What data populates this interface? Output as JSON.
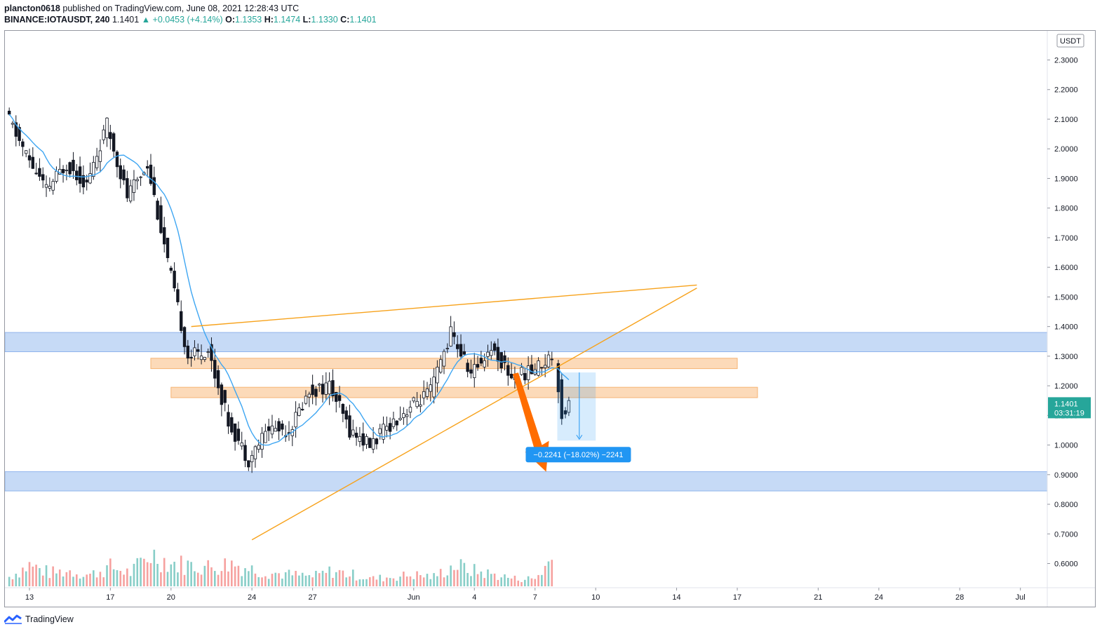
{
  "header": {
    "publisher": "plancton0618",
    "published_text": "published on TradingView.com, June 08, 2021 12:28:43 UTC",
    "symbol": "BINANCE:IOTAUSDT, 240",
    "last": "1.1401",
    "change": "+0.0453 (+4.14%)",
    "o_label": "O:",
    "o_value": "1.1353",
    "h_label": "H:",
    "h_value": "1.1474",
    "l_label": "L:",
    "l_value": "1.1330",
    "c_label": "C:",
    "c_value": "1.1401"
  },
  "footer": {
    "brand": "TradingView"
  },
  "colors": {
    "up": "#26a69a",
    "down": "#ef5350",
    "candle_up_fill": "#ffffff",
    "candle_body": "#131722",
    "ma": "#3ea6f2",
    "trendline": "#f7a21b",
    "zone_blue": "#bcd3f5",
    "zone_orange": "#fbd3ad",
    "arrow": "#ff6d00",
    "measure": "#2196f3",
    "price_label": "#26a69a"
  },
  "chart_data": {
    "type": "candlestick",
    "symbol": "BINANCE:IOTAUSDT",
    "timeframe": "240",
    "price_unit": "USDT",
    "y_axis": {
      "ticks": [
        "2.3000",
        "2.2000",
        "2.1000",
        "2.0000",
        "1.9000",
        "1.8000",
        "1.7000",
        "1.6000",
        "1.5000",
        "1.4000",
        "1.3000",
        "1.2000",
        "1.1000",
        "1.0000",
        "0.9000",
        "0.8000",
        "0.7000",
        "0.6000"
      ],
      "range": [
        0.53,
        2.33
      ]
    },
    "x_axis": {
      "ticks": [
        "13",
        "17",
        "20",
        "24",
        "27",
        "Jun",
        "4",
        "7",
        "10",
        "14",
        "17",
        "21",
        "24",
        "28",
        "Jul"
      ],
      "tick_dates": [
        "2021-05-13",
        "2021-05-17",
        "2021-05-20",
        "2021-05-24",
        "2021-05-27",
        "2021-06-01",
        "2021-06-04",
        "2021-06-07",
        "2021-06-10",
        "2021-06-14",
        "2021-06-17",
        "2021-06-21",
        "2021-06-24",
        "2021-06-28",
        "2021-07-01"
      ]
    },
    "current_price": "1.1401",
    "countdown": "03:31:19",
    "measurement_label": "−0.2241 (−18.02%) −2241",
    "price_path": [
      [
        "2021-05-12",
        2.12
      ],
      [
        "2021-05-13",
        1.98
      ],
      [
        "2021-05-14",
        1.86
      ],
      [
        "2021-05-15",
        1.95
      ],
      [
        "2021-05-16",
        1.88
      ],
      [
        "2021-05-17",
        2.08
      ],
      [
        "2021-05-18",
        1.84
      ],
      [
        "2021-05-19",
        1.95
      ],
      [
        "2021-05-20",
        1.62
      ],
      [
        "2021-05-21",
        1.3
      ],
      [
        "2021-05-22",
        1.32
      ],
      [
        "2021-05-23",
        1.08
      ],
      [
        "2021-05-24",
        0.95
      ],
      [
        "2021-05-25",
        1.06
      ],
      [
        "2021-05-26",
        1.05
      ],
      [
        "2021-05-27",
        1.18
      ],
      [
        "2021-05-28",
        1.2
      ],
      [
        "2021-05-29",
        1.05
      ],
      [
        "2021-05-30",
        1.0
      ],
      [
        "2021-05-31",
        1.07
      ],
      [
        "2021-06-01",
        1.13
      ],
      [
        "2021-06-02",
        1.18
      ],
      [
        "2021-06-03",
        1.38
      ],
      [
        "2021-06-04",
        1.24
      ],
      [
        "2021-06-05",
        1.33
      ],
      [
        "2021-06-06",
        1.23
      ],
      [
        "2021-06-07",
        1.25
      ],
      [
        "2021-06-08",
        1.3
      ],
      [
        "2021-06-08",
        1.1
      ],
      [
        "2021-06-08",
        1.14
      ]
    ],
    "volume_path": [
      [
        "2021-05-12",
        0.25
      ],
      [
        "2021-05-13",
        0.55
      ],
      [
        "2021-05-14",
        0.35
      ],
      [
        "2021-05-15",
        0.4
      ],
      [
        "2021-05-16",
        0.3
      ],
      [
        "2021-05-17",
        0.5
      ],
      [
        "2021-05-18",
        0.35
      ],
      [
        "2021-05-19",
        0.85
      ],
      [
        "2021-05-20",
        0.6
      ],
      [
        "2021-05-21",
        0.55
      ],
      [
        "2021-05-22",
        0.5
      ],
      [
        "2021-05-23",
        0.6
      ],
      [
        "2021-05-24",
        0.45
      ],
      [
        "2021-05-25",
        0.35
      ],
      [
        "2021-05-26",
        0.3
      ],
      [
        "2021-05-27",
        0.25
      ],
      [
        "2021-05-28",
        0.4
      ],
      [
        "2021-05-29",
        0.3
      ],
      [
        "2021-05-30",
        0.2
      ],
      [
        "2021-05-31",
        0.25
      ],
      [
        "2021-06-01",
        0.3
      ],
      [
        "2021-06-02",
        0.25
      ],
      [
        "2021-06-03",
        0.55
      ],
      [
        "2021-06-04",
        0.4
      ],
      [
        "2021-06-05",
        0.3
      ],
      [
        "2021-06-06",
        0.2
      ],
      [
        "2021-06-07",
        0.2
      ],
      [
        "2021-06-08",
        0.8
      ]
    ],
    "zones": [
      {
        "kind": "resistance",
        "color": "blue",
        "from": 1.315,
        "to": 1.38,
        "start": "2021-05-10",
        "end": "extend"
      },
      {
        "kind": "support",
        "color": "blue",
        "from": 0.845,
        "to": 0.91,
        "start": "2021-05-10",
        "end": "extend"
      },
      {
        "kind": "zone",
        "color": "orange",
        "from": 1.258,
        "to": 1.293,
        "start": "2021-05-19",
        "end": "2021-06-17"
      },
      {
        "kind": "zone",
        "color": "orange",
        "from": 1.16,
        "to": 1.195,
        "start": "2021-05-20",
        "end": "2021-06-18"
      }
    ],
    "trendlines": [
      {
        "from": [
          "2021-05-21",
          1.4
        ],
        "to": [
          "2021-06-15",
          1.54
        ]
      },
      {
        "from": [
          "2021-05-24",
          0.68
        ],
        "to": [
          "2021-06-15",
          1.53
        ]
      }
    ],
    "measure": {
      "start": "2021-06-08",
      "end": "2021-06-10",
      "from_price": 1.245,
      "to_price": 1.015
    }
  }
}
